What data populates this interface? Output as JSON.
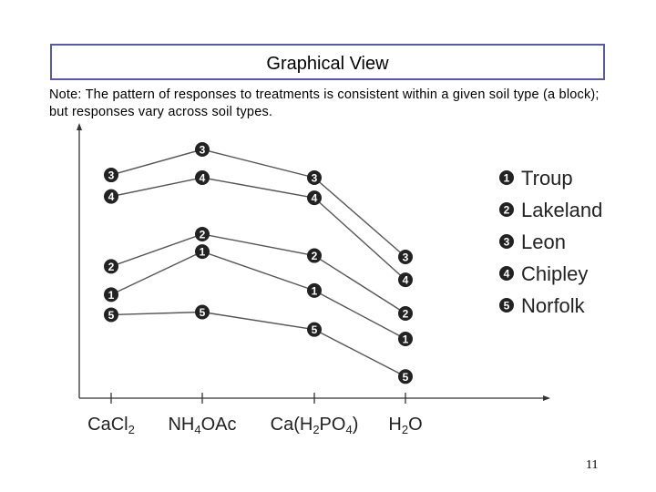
{
  "slide": {
    "title": "Graphical View",
    "note": "Note: The pattern of responses to treatments is consistent within a given soil type (a block); but responses vary across soil types.",
    "page_number": "11"
  },
  "chart_data": {
    "type": "line",
    "title": "",
    "xlabel": "",
    "ylabel": "",
    "categories": [
      "CaCl",
      "NH OAc",
      "Ca(H PO )",
      "H O"
    ],
    "category_labels": [
      {
        "parts": [
          {
            "t": "CaCl"
          },
          {
            "t": "2",
            "sub": true
          }
        ]
      },
      {
        "parts": [
          {
            "t": "NH"
          },
          {
            "t": "4",
            "sub": true
          },
          {
            "t": "OAc"
          }
        ]
      },
      {
        "parts": [
          {
            "t": "Ca(H"
          },
          {
            "t": "2",
            "sub": true
          },
          {
            "t": "PO"
          },
          {
            "t": "4",
            "sub": true
          },
          {
            "t": ")"
          }
        ]
      },
      {
        "parts": [
          {
            "t": "H"
          },
          {
            "t": "2",
            "sub": true
          },
          {
            "t": "O"
          }
        ]
      }
    ],
    "ylim": [
      0,
      100
    ],
    "grid": false,
    "legend_position": "right",
    "marker_color": "#222222",
    "line_color": "#555555",
    "series": [
      {
        "name": "Troup",
        "marker": "1",
        "values": [
          36.5,
          52.5,
          38.0,
          20.0
        ]
      },
      {
        "name": "Lakeland",
        "marker": "2",
        "values": [
          47.0,
          59.0,
          51.0,
          29.5
        ]
      },
      {
        "name": "Leon",
        "marker": "3",
        "values": [
          81.0,
          90.5,
          80.0,
          50.5
        ]
      },
      {
        "name": "Chipley",
        "marker": "4",
        "values": [
          73.0,
          80.0,
          72.5,
          42.0
        ]
      },
      {
        "name": "Norfolk",
        "marker": "5",
        "values": [
          29.0,
          30.0,
          23.5,
          6.0
        ]
      }
    ]
  }
}
